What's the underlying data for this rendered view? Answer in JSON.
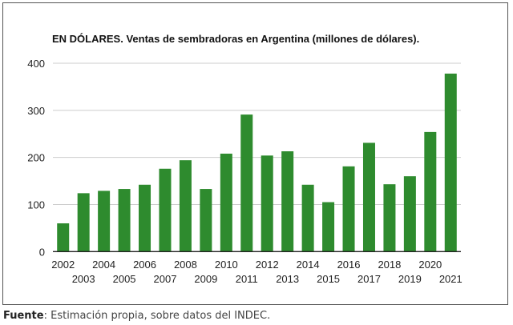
{
  "chart_data": {
    "type": "bar",
    "title": "EN DÓLARES. Ventas de sembradoras en Argentina (millones de dólares).",
    "categories": [
      "2002",
      "2003",
      "2004",
      "2005",
      "2006",
      "2007",
      "2008",
      "2009",
      "2010",
      "2011",
      "2012",
      "2013",
      "2014",
      "2015",
      "2016",
      "2017",
      "2018",
      "2019",
      "2020",
      "2021"
    ],
    "values": [
      60,
      124,
      129,
      133,
      142,
      176,
      194,
      133,
      208,
      291,
      204,
      213,
      142,
      105,
      181,
      231,
      143,
      160,
      254,
      378
    ],
    "ylim": [
      0,
      400
    ],
    "yticks": [
      "0",
      "100",
      "200",
      "300",
      "400"
    ],
    "xlabel": "",
    "ylabel": "",
    "grid": true,
    "bar_color": "#2e8b2e"
  },
  "footer": {
    "label": "Fuente",
    "text": ": Estimación propia, sobre datos del INDEC."
  }
}
